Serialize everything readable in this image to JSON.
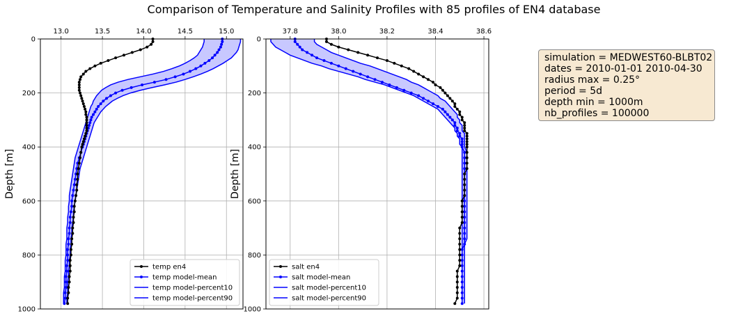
{
  "title": "Comparison of Temperature and Salinity Profiles with 85 profiles of EN4 database",
  "info_box": [
    "simulation = MEDWEST60-BLBT02",
    "dates = 2010-01-01 2010-04-30",
    "radius max = 0.25°",
    "period = 5d",
    "depth min = 1000m",
    "nb_profiles = 100000"
  ],
  "colors": {
    "obs": "#000000",
    "model": "#0000ff",
    "band_fill": "#c8c8ff"
  },
  "chart_data": [
    {
      "type": "line",
      "ylabel": "Depth [m]",
      "ylim": [
        1000,
        0
      ],
      "yticks": [
        0,
        200,
        400,
        600,
        800,
        1000
      ],
      "xlim": [
        12.75,
        15.2
      ],
      "xticks": [
        13.0,
        13.5,
        14.0,
        14.5,
        15.0
      ],
      "xtick_labels": [
        "13.0",
        "13.5",
        "14.0",
        "14.5",
        "15.0"
      ],
      "x_axis_position": "top",
      "grid": true,
      "legend_position": "lower-right",
      "legend": [
        "temp en4",
        "temp model-mean",
        "temp model-percent10",
        "temp model-percent90"
      ],
      "depth": [
        0,
        10,
        20,
        30,
        40,
        50,
        60,
        70,
        80,
        90,
        100,
        110,
        120,
        130,
        140,
        150,
        160,
        170,
        180,
        190,
        200,
        210,
        220,
        230,
        240,
        250,
        260,
        270,
        280,
        290,
        300,
        310,
        320,
        330,
        340,
        350,
        360,
        370,
        380,
        390,
        400,
        420,
        440,
        460,
        480,
        500,
        520,
        540,
        560,
        580,
        600,
        620,
        640,
        660,
        680,
        700,
        720,
        740,
        760,
        780,
        800,
        820,
        840,
        860,
        880,
        900,
        920,
        940,
        960,
        980
      ],
      "series": [
        {
          "name": "temp en4",
          "values": [
            14.11,
            14.11,
            14.09,
            14.04,
            13.96,
            13.86,
            13.76,
            13.66,
            13.57,
            13.48,
            13.41,
            13.35,
            13.3,
            13.27,
            13.24,
            13.23,
            13.22,
            13.22,
            13.22,
            13.22,
            13.23,
            13.24,
            13.25,
            13.26,
            13.27,
            13.28,
            13.29,
            13.3,
            13.3,
            13.31,
            13.31,
            13.31,
            13.31,
            13.31,
            13.31,
            13.3,
            13.29,
            13.28,
            13.27,
            13.26,
            13.25,
            13.24,
            13.23,
            13.22,
            13.21,
            13.2,
            13.2,
            13.19,
            13.19,
            13.18,
            13.17,
            13.16,
            13.16,
            13.15,
            13.15,
            13.14,
            13.14,
            13.13,
            13.13,
            13.12,
            13.12,
            13.11,
            13.11,
            13.11,
            13.1,
            13.1,
            13.09,
            13.09,
            13.08,
            13.08
          ]
        },
        {
          "name": "temp model-mean",
          "values": [
            14.95,
            14.95,
            14.94,
            14.93,
            14.91,
            14.89,
            14.86,
            14.83,
            14.79,
            14.74,
            14.69,
            14.63,
            14.56,
            14.48,
            14.38,
            14.27,
            14.13,
            13.98,
            13.85,
            13.74,
            13.66,
            13.6,
            13.55,
            13.51,
            13.48,
            13.45,
            13.43,
            13.41,
            13.39,
            13.37,
            13.36,
            13.35,
            13.34,
            13.33,
            13.32,
            13.31,
            13.3,
            13.29,
            13.28,
            13.27,
            13.26,
            13.24,
            13.22,
            13.2,
            13.19,
            13.18,
            13.17,
            13.16,
            13.15,
            13.14,
            13.13,
            13.13,
            13.12,
            13.11,
            13.11,
            13.1,
            13.1,
            13.09,
            13.09,
            13.08,
            13.08,
            13.08,
            13.07,
            13.07,
            13.06,
            13.06,
            13.06,
            13.05,
            13.05,
            13.04
          ]
        },
        {
          "name": "temp model-percent10",
          "values": [
            14.73,
            14.73,
            14.72,
            14.71,
            14.69,
            14.67,
            14.65,
            14.61,
            14.56,
            14.5,
            14.43,
            14.34,
            14.24,
            14.11,
            13.96,
            13.81,
            13.69,
            13.6,
            13.54,
            13.49,
            13.46,
            13.43,
            13.41,
            13.39,
            13.38,
            13.36,
            13.35,
            13.34,
            13.33,
            13.32,
            13.31,
            13.3,
            13.29,
            13.28,
            13.27,
            13.26,
            13.25,
            13.24,
            13.23,
            13.22,
            13.21,
            13.19,
            13.17,
            13.16,
            13.15,
            13.14,
            13.13,
            13.12,
            13.11,
            13.1,
            13.1,
            13.09,
            13.09,
            13.08,
            13.08,
            13.07,
            13.07,
            13.07,
            13.06,
            13.06,
            13.06,
            13.05,
            13.05,
            13.05,
            13.04,
            13.04,
            13.04,
            13.03,
            13.03,
            13.03
          ]
        },
        {
          "name": "temp model-percent90",
          "values": [
            15.17,
            15.17,
            15.16,
            15.15,
            15.14,
            15.12,
            15.09,
            15.06,
            15.01,
            14.96,
            14.9,
            14.84,
            14.77,
            14.69,
            14.6,
            14.5,
            14.39,
            14.25,
            14.1,
            13.96,
            13.84,
            13.75,
            13.68,
            13.62,
            13.58,
            13.54,
            13.51,
            13.48,
            13.46,
            13.44,
            13.42,
            13.4,
            13.39,
            13.38,
            13.37,
            13.36,
            13.35,
            13.34,
            13.33,
            13.32,
            13.31,
            13.29,
            13.27,
            13.25,
            13.23,
            13.22,
            13.21,
            13.2,
            13.19,
            13.18,
            13.17,
            13.16,
            13.15,
            13.15,
            13.14,
            13.13,
            13.13,
            13.12,
            13.12,
            13.11,
            13.11,
            13.1,
            13.1,
            13.09,
            13.09,
            13.08,
            13.08,
            13.08,
            13.07,
            13.07
          ]
        }
      ]
    },
    {
      "type": "line",
      "ylabel": "Depth [m]",
      "ylim": [
        1000,
        0
      ],
      "yticks": [
        0,
        200,
        400,
        600,
        800,
        1000
      ],
      "xlim": [
        37.7,
        38.62
      ],
      "xticks": [
        37.8,
        38.0,
        38.2,
        38.4,
        38.6
      ],
      "xtick_labels": [
        "37.8",
        "38.0",
        "38.2",
        "38.4",
        "38.6"
      ],
      "x_axis_position": "top",
      "grid": true,
      "legend_position": "lower-left",
      "legend": [
        "salt en4",
        "salt model-mean",
        "salt model-percent10",
        "salt model-percent90"
      ],
      "depth": [
        0,
        10,
        20,
        30,
        40,
        50,
        60,
        70,
        80,
        90,
        100,
        110,
        120,
        130,
        140,
        150,
        160,
        170,
        180,
        190,
        200,
        210,
        220,
        230,
        240,
        250,
        260,
        270,
        280,
        290,
        300,
        310,
        320,
        330,
        340,
        350,
        360,
        370,
        380,
        390,
        400,
        420,
        440,
        460,
        480,
        500,
        520,
        540,
        560,
        580,
        600,
        620,
        640,
        660,
        680,
        700,
        720,
        740,
        760,
        780,
        800,
        820,
        840,
        860,
        880,
        900,
        920,
        940,
        960,
        980
      ],
      "series": [
        {
          "name": "salt en4",
          "values": [
            37.95,
            37.95,
            37.97,
            38.0,
            38.04,
            38.08,
            38.12,
            38.16,
            38.2,
            38.23,
            38.26,
            38.29,
            38.31,
            38.33,
            38.35,
            38.37,
            38.39,
            38.4,
            38.42,
            38.43,
            38.44,
            38.45,
            38.46,
            38.47,
            38.48,
            38.48,
            38.49,
            38.5,
            38.5,
            38.51,
            38.51,
            38.52,
            38.52,
            38.52,
            38.52,
            38.53,
            38.53,
            38.53,
            38.53,
            38.53,
            38.53,
            38.53,
            38.53,
            38.53,
            38.53,
            38.52,
            38.52,
            38.52,
            38.52,
            38.52,
            38.51,
            38.51,
            38.51,
            38.51,
            38.51,
            38.5,
            38.5,
            38.5,
            38.5,
            38.5,
            38.5,
            38.5,
            38.5,
            38.49,
            38.49,
            38.49,
            38.49,
            38.49,
            38.49,
            38.48
          ]
        },
        {
          "name": "salt model-mean",
          "values": [
            37.82,
            37.82,
            37.83,
            37.84,
            37.85,
            37.87,
            37.89,
            37.91,
            37.94,
            37.97,
            38.0,
            38.03,
            38.06,
            38.09,
            38.12,
            38.15,
            38.18,
            38.21,
            38.24,
            38.27,
            38.3,
            38.33,
            38.35,
            38.37,
            38.39,
            38.41,
            38.43,
            38.44,
            38.45,
            38.46,
            38.47,
            38.48,
            38.48,
            38.49,
            38.49,
            38.5,
            38.5,
            38.51,
            38.51,
            38.51,
            38.51,
            38.52,
            38.52,
            38.52,
            38.52,
            38.52,
            38.52,
            38.52,
            38.52,
            38.52,
            38.52,
            38.52,
            38.52,
            38.52,
            38.52,
            38.52,
            38.52,
            38.52,
            38.52,
            38.51,
            38.51,
            38.51,
            38.51,
            38.51,
            38.51,
            38.51,
            38.51,
            38.51,
            38.51,
            38.51
          ]
        },
        {
          "name": "salt model-percent10",
          "values": [
            37.72,
            37.72,
            37.73,
            37.74,
            37.76,
            37.78,
            37.8,
            37.83,
            37.86,
            37.89,
            37.93,
            37.96,
            38.0,
            38.04,
            38.08,
            38.11,
            38.15,
            38.19,
            38.22,
            38.25,
            38.28,
            38.31,
            38.33,
            38.35,
            38.37,
            38.39,
            38.41,
            38.42,
            38.43,
            38.44,
            38.45,
            38.46,
            38.47,
            38.48,
            38.48,
            38.49,
            38.49,
            38.5,
            38.5,
            38.5,
            38.51,
            38.51,
            38.51,
            38.51,
            38.51,
            38.51,
            38.51,
            38.51,
            38.51,
            38.51,
            38.51,
            38.51,
            38.51,
            38.51,
            38.51,
            38.51,
            38.51,
            38.51,
            38.51,
            38.51,
            38.51,
            38.51,
            38.51,
            38.51,
            38.51,
            38.51,
            38.51,
            38.51,
            38.51,
            38.51
          ]
        },
        {
          "name": "salt model-percent90",
          "values": [
            37.9,
            37.9,
            37.91,
            37.93,
            37.95,
            37.97,
            38.0,
            38.03,
            38.06,
            38.09,
            38.13,
            38.16,
            38.19,
            38.22,
            38.25,
            38.28,
            38.3,
            38.33,
            38.35,
            38.37,
            38.39,
            38.41,
            38.42,
            38.44,
            38.45,
            38.46,
            38.47,
            38.48,
            38.49,
            38.49,
            38.5,
            38.5,
            38.51,
            38.51,
            38.51,
            38.52,
            38.52,
            38.52,
            38.52,
            38.52,
            38.52,
            38.53,
            38.53,
            38.53,
            38.53,
            38.53,
            38.53,
            38.53,
            38.53,
            38.53,
            38.53,
            38.53,
            38.53,
            38.53,
            38.53,
            38.53,
            38.53,
            38.53,
            38.52,
            38.52,
            38.52,
            38.52,
            38.52,
            38.52,
            38.52,
            38.52,
            38.52,
            38.52,
            38.52,
            38.52
          ]
        }
      ]
    }
  ]
}
